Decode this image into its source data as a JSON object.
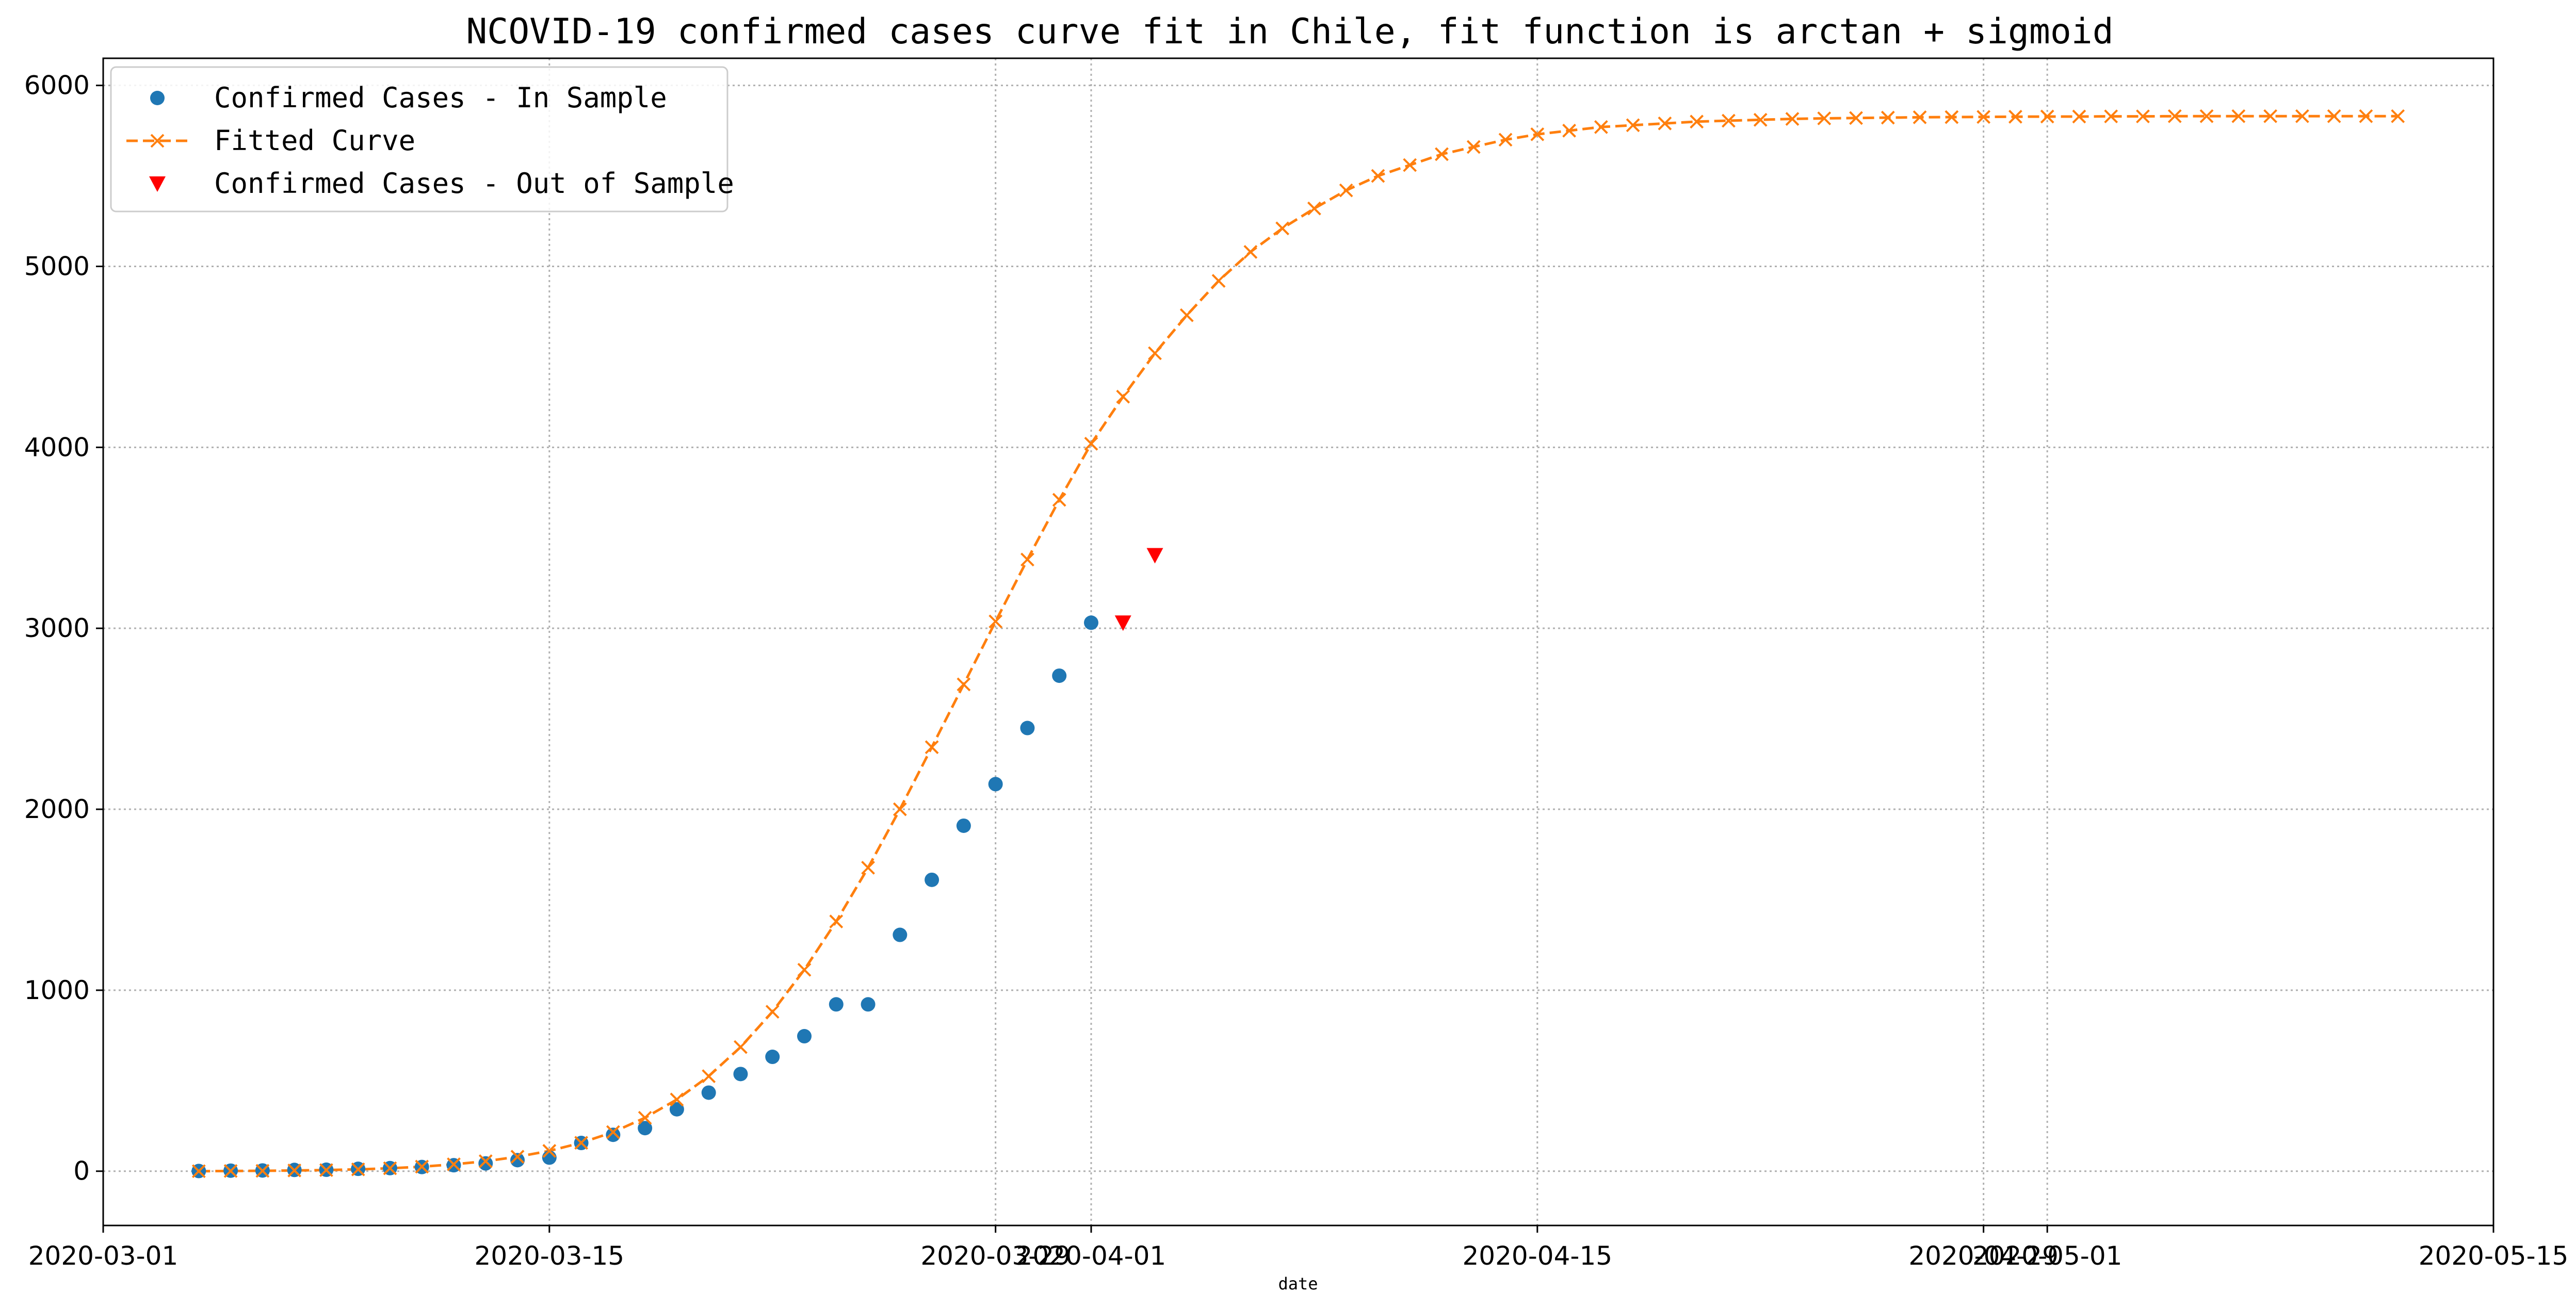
{
  "chart_data": {
    "type": "line",
    "title": "NCOVID-19 confirmed cases curve fit in Chile, fit function is arctan + sigmoid",
    "xlabel": "date",
    "ylabel": "",
    "xlim": [
      "2020-03-01",
      "2020-05-15"
    ],
    "ylim": [
      -300,
      6150
    ],
    "grid": true,
    "legend_position": "top-left",
    "x_ticks": [
      "2020-03-01",
      "2020-03-15",
      "2020-03-29",
      "2020-04-01",
      "2020-04-15",
      "2020-04-29",
      "2020-05-01",
      "2020-05-15"
    ],
    "x_tick_labels": [
      "2020-03-01",
      "2020-03-15",
      "2020-03-29",
      "2020-04-01",
      "2020-04-15",
      "2020-04-29",
      "2020-05-01",
      "2020-05-15"
    ],
    "y_ticks": [
      0,
      1000,
      2000,
      3000,
      4000,
      5000,
      6000
    ],
    "y_tick_labels": [
      "0",
      "1000",
      "2000",
      "3000",
      "4000",
      "5000",
      "6000"
    ],
    "series": [
      {
        "name": "Confirmed Cases - In Sample",
        "marker": "circle",
        "color": "#1f77b4",
        "x": [
          "2020-03-04",
          "2020-03-05",
          "2020-03-06",
          "2020-03-07",
          "2020-03-08",
          "2020-03-09",
          "2020-03-10",
          "2020-03-11",
          "2020-03-12",
          "2020-03-13",
          "2020-03-14",
          "2020-03-15",
          "2020-03-16",
          "2020-03-17",
          "2020-03-18",
          "2020-03-19",
          "2020-03-20",
          "2020-03-21",
          "2020-03-22",
          "2020-03-23",
          "2020-03-24",
          "2020-03-25",
          "2020-03-26",
          "2020-03-27",
          "2020-03-28",
          "2020-03-29",
          "2020-03-30",
          "2020-03-31",
          "2020-04-01"
        ],
        "values": [
          1,
          3,
          4,
          7,
          8,
          13,
          17,
          23,
          33,
          43,
          61,
          75,
          156,
          201,
          238,
          342,
          434,
          537,
          632,
          746,
          922,
          922,
          1306,
          1610,
          1909,
          2139,
          2449,
          2738,
          3031
        ]
      },
      {
        "name": "Fitted Curve",
        "marker": "x",
        "line_style": "dashed",
        "color": "#ff7f0e",
        "x": [
          "2020-03-04",
          "2020-03-05",
          "2020-03-06",
          "2020-03-07",
          "2020-03-08",
          "2020-03-09",
          "2020-03-10",
          "2020-03-11",
          "2020-03-12",
          "2020-03-13",
          "2020-03-14",
          "2020-03-15",
          "2020-03-16",
          "2020-03-17",
          "2020-03-18",
          "2020-03-19",
          "2020-03-20",
          "2020-03-21",
          "2020-03-22",
          "2020-03-23",
          "2020-03-24",
          "2020-03-25",
          "2020-03-26",
          "2020-03-27",
          "2020-03-28",
          "2020-03-29",
          "2020-03-30",
          "2020-03-31",
          "2020-04-01",
          "2020-04-02",
          "2020-04-03",
          "2020-04-04",
          "2020-04-05",
          "2020-04-06",
          "2020-04-07",
          "2020-04-08",
          "2020-04-09",
          "2020-04-10",
          "2020-04-11",
          "2020-04-12",
          "2020-04-13",
          "2020-04-14",
          "2020-04-15",
          "2020-04-16",
          "2020-04-17",
          "2020-04-18",
          "2020-04-19",
          "2020-04-20",
          "2020-04-21",
          "2020-04-22",
          "2020-04-23",
          "2020-04-24",
          "2020-04-25",
          "2020-04-26",
          "2020-04-27",
          "2020-04-28",
          "2020-04-29",
          "2020-04-30",
          "2020-05-01",
          "2020-05-02",
          "2020-05-03",
          "2020-05-04",
          "2020-05-05",
          "2020-05-06",
          "2020-05-07",
          "2020-05-08",
          "2020-05-09",
          "2020-05-10",
          "2020-05-11",
          "2020-05-12"
        ],
        "values": [
          0,
          1,
          2,
          4,
          6,
          10,
          16,
          25,
          38,
          55,
          80,
          112,
          157,
          216,
          295,
          396,
          525,
          686,
          881,
          1113,
          1380,
          1677,
          2000,
          2343,
          2690,
          3038,
          3380,
          3710,
          4020,
          4280,
          4520,
          4730,
          4920,
          5080,
          5210,
          5320,
          5420,
          5500,
          5560,
          5620,
          5660,
          5700,
          5730,
          5750,
          5770,
          5780,
          5790,
          5800,
          5805,
          5810,
          5815,
          5818,
          5820,
          5822,
          5824,
          5825,
          5826,
          5827,
          5828,
          5828,
          5829,
          5829,
          5830,
          5830,
          5830,
          5830,
          5830,
          5830,
          5830,
          5830
        ]
      },
      {
        "name": "Confirmed Cases - Out of Sample",
        "marker": "triangle-down",
        "color": "#ff0000",
        "x": [
          "2020-04-02",
          "2020-04-03"
        ],
        "values": [
          3031,
          3404
        ]
      }
    ]
  }
}
